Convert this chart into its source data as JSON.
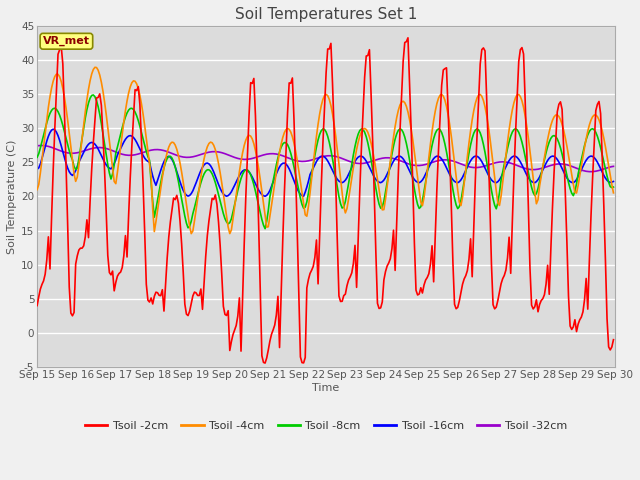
{
  "title": "Soil Temperatures Set 1",
  "xlabel": "Time",
  "ylabel": "Soil Temperature (C)",
  "ylim": [
    -5,
    45
  ],
  "bg_color": "#dcdcdc",
  "grid_color": "#ffffff",
  "plot_area_bg": "#dcdcdc",
  "annotation_text": "VR_met",
  "annotation_bg": "#ffff80",
  "annotation_border": "#888800",
  "series_colors": {
    "Tsoil -2cm": "#ff0000",
    "Tsoil -4cm": "#ff8c00",
    "Tsoil -8cm": "#00cc00",
    "Tsoil -16cm": "#0000ff",
    "Tsoil -32cm": "#9900cc"
  },
  "xtick_labels": [
    "Sep 15",
    "Sep 16",
    "Sep 17",
    "Sep 18",
    "Sep 19",
    "Sep 20",
    "Sep 21",
    "Sep 22",
    "Sep 23",
    "Sep 24",
    "Sep 25",
    "Sep 26",
    "Sep 27",
    "Sep 28",
    "Sep 29",
    "Sep 30"
  ],
  "ytick_values": [
    -5,
    0,
    5,
    10,
    15,
    20,
    25,
    30,
    35,
    40,
    45
  ],
  "title_fontsize": 11,
  "label_fontsize": 8,
  "tick_fontsize": 7.5,
  "legend_fontsize": 8
}
